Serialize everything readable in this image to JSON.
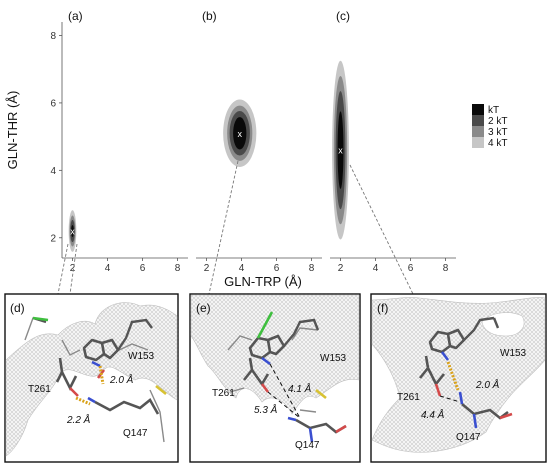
{
  "chart_data": {
    "type": "heatmap",
    "xlabel": "GLN-TRP (Å)",
    "ylabel": "GLN-THR (Å)",
    "x_ticks": [
      2,
      4,
      6,
      8
    ],
    "y_ticks": [
      2,
      4,
      6,
      8
    ],
    "xlim": [
      1.4,
      8.6
    ],
    "ylim": [
      1.4,
      8.4
    ],
    "panels": [
      {
        "label": "(a)",
        "min": {
          "x": 2.0,
          "y": 2.2
        },
        "marker": "x",
        "levels": [
          {
            "name": "4 kT",
            "sx": 0.22,
            "sy": 0.62
          },
          {
            "name": "3 kT",
            "sx": 0.17,
            "sy": 0.46
          },
          {
            "name": "2 kT",
            "sx": 0.13,
            "sy": 0.33
          },
          {
            "name": "kT",
            "sx": 0.08,
            "sy": 0.18
          }
        ]
      },
      {
        "label": "(b)",
        "min": {
          "x": 3.9,
          "y": 5.1
        },
        "marker": "x",
        "levels": [
          {
            "name": "4 kT",
            "sx": 0.95,
            "sy": 1.0
          },
          {
            "name": "3 kT",
            "sx": 0.72,
            "sy": 0.82
          },
          {
            "name": "2 kT",
            "sx": 0.58,
            "sy": 0.66
          },
          {
            "name": "kT",
            "sx": 0.38,
            "sy": 0.48
          }
        ]
      },
      {
        "label": "(c)",
        "min": {
          "x": 2.0,
          "y": 4.6
        },
        "marker": "x",
        "levels": [
          {
            "name": "4 kT",
            "sx": 0.48,
            "sy": 2.65
          },
          {
            "name": "3 kT",
            "sx": 0.38,
            "sy": 2.2
          },
          {
            "name": "2 kT",
            "sx": 0.28,
            "sy": 1.75
          },
          {
            "name": "kT",
            "sx": 0.17,
            "sy": 1.15
          }
        ]
      }
    ],
    "legend": {
      "placement": "right",
      "entries": [
        {
          "label": "kT",
          "color": "#0a0a0a"
        },
        {
          "label": "2 kT",
          "color": "#4a4a4a"
        },
        {
          "label": "3 kT",
          "color": "#8a8a8a"
        },
        {
          "label": "4 kT",
          "color": "#c6c6c6"
        }
      ]
    }
  },
  "snapshots": [
    {
      "label": "(d)",
      "residues": [
        "W153",
        "T261",
        "Q147"
      ],
      "distances": [
        "2.0 Å",
        "2.2 Å"
      ]
    },
    {
      "label": "(e)",
      "residues": [
        "W153",
        "T261",
        "Q147"
      ],
      "distances": [
        "4.1 Å",
        "5.3 Å"
      ]
    },
    {
      "label": "(f)",
      "residues": [
        "W153",
        "T261",
        "Q147"
      ],
      "distances": [
        "2.0 Å",
        "4.4 Å"
      ]
    }
  ]
}
